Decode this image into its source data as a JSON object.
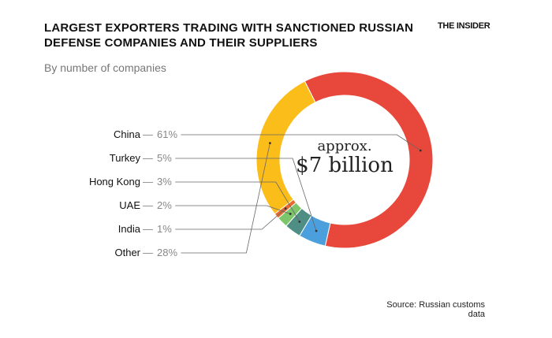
{
  "header": {
    "title": "LARGEST EXPORTERS TRADING WITH SANCTIONED RUSSIAN DEFENSE COMPANIES AND THEIR SUPPLIERS",
    "subtitle": "By number of companies",
    "brand": "THE INSIDER",
    "source": "Source: Russian customs data"
  },
  "center": {
    "line1": "approx.",
    "line2": "$7 billion"
  },
  "chart_data": {
    "type": "pie",
    "style": "donut",
    "title": "LARGEST EXPORTERS TRADING WITH SANCTIONED RUSSIAN DEFENSE COMPANIES AND THEIR SUPPLIERS",
    "subtitle": "By number of companies",
    "categories": [
      "China",
      "Turkey",
      "Hong Kong",
      "UAE",
      "India",
      "Other"
    ],
    "values": [
      61,
      5,
      3,
      2,
      1,
      28
    ],
    "labels": [
      "61%",
      "5%",
      "3%",
      "2%",
      "1%",
      "28%"
    ],
    "colors": [
      "#e8483b",
      "#4a9fdc",
      "#4f8e84",
      "#7cc56a",
      "#e86a2e",
      "#fbbd1a"
    ],
    "center_text": [
      "approx.",
      "$7 billion"
    ]
  }
}
